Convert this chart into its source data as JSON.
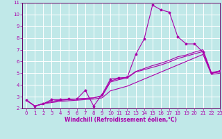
{
  "title": "",
  "xlabel": "Windchill (Refroidissement éolien,°C)",
  "bg_color": "#c0e8e8",
  "grid_color": "#ffffff",
  "line_color": "#aa00aa",
  "spine_color": "#660066",
  "xlim": [
    -0.5,
    23
  ],
  "ylim": [
    2,
    11
  ],
  "yticks": [
    2,
    3,
    4,
    5,
    6,
    7,
    8,
    9,
    10,
    11
  ],
  "xticks": [
    0,
    1,
    2,
    3,
    4,
    5,
    6,
    7,
    8,
    9,
    10,
    11,
    12,
    13,
    14,
    15,
    16,
    17,
    18,
    19,
    20,
    21,
    22,
    23
  ],
  "s1_x": [
    0,
    1,
    2,
    3,
    4,
    5,
    6,
    7,
    8,
    9,
    10,
    11,
    12,
    13,
    14,
    15,
    16,
    17,
    18,
    19,
    20,
    21,
    22,
    23
  ],
  "s1_y": [
    2.7,
    2.2,
    2.4,
    2.75,
    2.75,
    2.8,
    2.8,
    3.55,
    2.2,
    3.2,
    4.5,
    4.6,
    4.65,
    6.6,
    7.9,
    10.8,
    10.4,
    10.2,
    8.1,
    7.5,
    7.5,
    6.8,
    5.0,
    5.2
  ],
  "s2_x": [
    0,
    1,
    2,
    3,
    4,
    5,
    6,
    7,
    8,
    9,
    10,
    11,
    12,
    13,
    14,
    15,
    16,
    17,
    18,
    19,
    20,
    21,
    22,
    23
  ],
  "s2_y": [
    2.7,
    2.2,
    2.4,
    2.6,
    2.7,
    2.75,
    2.8,
    2.85,
    2.9,
    3.1,
    4.35,
    4.55,
    4.65,
    5.15,
    5.4,
    5.65,
    5.85,
    6.1,
    6.4,
    6.55,
    6.8,
    7.0,
    5.05,
    5.2
  ],
  "s3_x": [
    0,
    1,
    2,
    3,
    4,
    5,
    6,
    7,
    8,
    9,
    10,
    11,
    12,
    13,
    14,
    15,
    16,
    17,
    18,
    19,
    20,
    21,
    22,
    23
  ],
  "s3_y": [
    2.7,
    2.2,
    2.4,
    2.6,
    2.7,
    2.75,
    2.8,
    2.85,
    2.9,
    3.05,
    4.25,
    4.45,
    4.6,
    5.1,
    5.3,
    5.5,
    5.7,
    5.95,
    6.25,
    6.45,
    6.65,
    6.85,
    5.0,
    5.1
  ],
  "s4_x": [
    0,
    1,
    2,
    3,
    4,
    5,
    6,
    7,
    8,
    9,
    10,
    11,
    12,
    13,
    14,
    15,
    16,
    17,
    18,
    19,
    20,
    21,
    22,
    23
  ],
  "s4_y": [
    2.7,
    2.2,
    2.4,
    2.5,
    2.6,
    2.65,
    2.7,
    2.75,
    2.8,
    2.9,
    3.5,
    3.7,
    3.9,
    4.2,
    4.5,
    4.8,
    5.1,
    5.4,
    5.7,
    6.0,
    6.3,
    6.6,
    4.9,
    5.0
  ]
}
